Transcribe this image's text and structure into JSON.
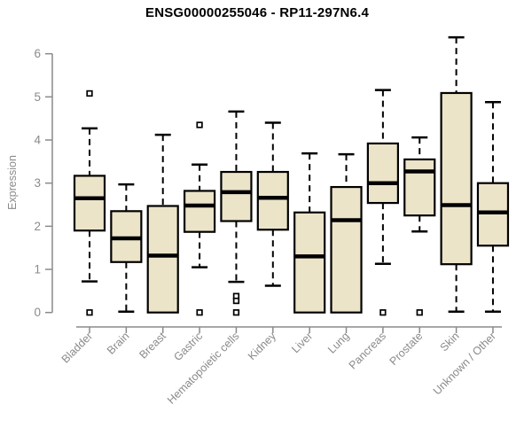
{
  "colors": {
    "background": "#ffffff",
    "box_fill": "#ebe4c9",
    "box_stroke": "#000000",
    "median": "#000000",
    "whisker": "#000000",
    "outlier_fill": "#ffffff",
    "axis": "#8a8a8a",
    "tick_label": "#8a8a8a",
    "title": "#000000"
  },
  "chart_data": {
    "type": "boxplot",
    "title": "ENSG00000255046 - RP11-297N6.4",
    "xlabel": "",
    "ylabel": "Expression",
    "ylim": [
      0,
      6
    ],
    "yticks": [
      0,
      1,
      2,
      3,
      4,
      5,
      6
    ],
    "grid": false,
    "legend": "none",
    "categories": [
      "Bladder",
      "Brain",
      "Breast",
      "Gastric",
      "Hematopoietic cells",
      "Kidney",
      "Liver",
      "Lung",
      "Pancreas",
      "Prostate",
      "Skin",
      "Unknown / Other"
    ],
    "boxes": [
      {
        "label": "Bladder",
        "whisker_low": 0.72,
        "q1": 1.9,
        "median": 2.65,
        "q3": 3.17,
        "whisker_high": 4.27,
        "outliers": [
          5.08,
          0.0
        ]
      },
      {
        "label": "Brain",
        "whisker_low": 0.02,
        "q1": 1.17,
        "median": 1.72,
        "q3": 2.35,
        "whisker_high": 2.97,
        "outliers": []
      },
      {
        "label": "Breast",
        "whisker_low": 0.0,
        "q1": 0.0,
        "median": 1.32,
        "q3": 2.47,
        "whisker_high": 4.12,
        "outliers": []
      },
      {
        "label": "Gastric",
        "whisker_low": 1.05,
        "q1": 1.87,
        "median": 2.48,
        "q3": 2.82,
        "whisker_high": 3.43,
        "outliers": [
          4.35,
          0.0
        ]
      },
      {
        "label": "Hematopoietic cells",
        "whisker_low": 0.71,
        "q1": 2.12,
        "median": 2.79,
        "q3": 3.26,
        "whisker_high": 4.66,
        "outliers": [
          0.38,
          0.27,
          0.0
        ]
      },
      {
        "label": "Kidney",
        "whisker_low": 0.62,
        "q1": 1.92,
        "median": 2.66,
        "q3": 3.26,
        "whisker_high": 4.4,
        "outliers": []
      },
      {
        "label": "Liver",
        "whisker_low": 0.0,
        "q1": 0.0,
        "median": 1.3,
        "q3": 2.32,
        "whisker_high": 3.69,
        "outliers": []
      },
      {
        "label": "Lung",
        "whisker_low": 0.0,
        "q1": 0.0,
        "median": 2.14,
        "q3": 2.91,
        "whisker_high": 3.67,
        "outliers": []
      },
      {
        "label": "Pancreas",
        "whisker_low": 1.13,
        "q1": 2.54,
        "median": 3.0,
        "q3": 3.92,
        "whisker_high": 5.16,
        "outliers": [
          0.0
        ]
      },
      {
        "label": "Prostate",
        "whisker_low": 1.88,
        "q1": 2.25,
        "median": 3.27,
        "q3": 3.55,
        "whisker_high": 4.06,
        "outliers": [
          0.0
        ]
      },
      {
        "label": "Skin",
        "whisker_low": 0.02,
        "q1": 1.12,
        "median": 2.49,
        "q3": 5.09,
        "whisker_high": 6.38,
        "outliers": []
      },
      {
        "label": "Unknown / Other",
        "whisker_low": 0.02,
        "q1": 1.55,
        "median": 2.32,
        "q3": 3.0,
        "whisker_high": 4.88,
        "outliers": []
      }
    ]
  }
}
